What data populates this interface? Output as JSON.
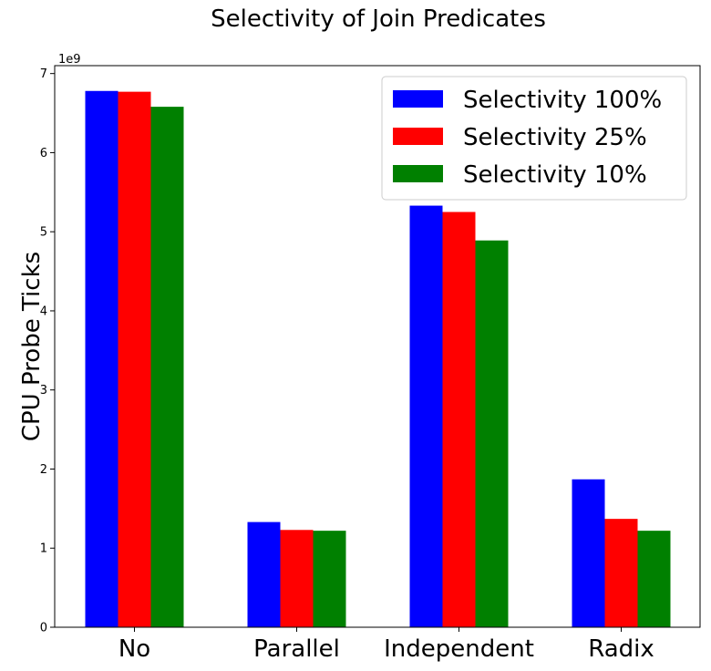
{
  "chart_data": {
    "type": "bar",
    "title": "Selectivity of Join Predicates",
    "xlabel": "",
    "ylabel": "CPU Probe Ticks",
    "y_multiplier": "1e9",
    "ylim": [
      0,
      7.1
    ],
    "yticks": [
      0,
      1,
      2,
      3,
      4,
      5,
      6,
      7
    ],
    "categories": [
      "No",
      "Parallel",
      "Independent",
      "Radix"
    ],
    "series": [
      {
        "name": "Selectivity 100%",
        "color": "#0000ff",
        "values": [
          6.78,
          1.33,
          5.33,
          1.87
        ]
      },
      {
        "name": "Selectivity 25%",
        "color": "#ff0000",
        "values": [
          6.77,
          1.23,
          5.25,
          1.37
        ]
      },
      {
        "name": "Selectivity 10%",
        "color": "#008000",
        "values": [
          6.58,
          1.22,
          4.89,
          1.22
        ]
      }
    ],
    "legend_position": "top-right",
    "grid": false
  }
}
